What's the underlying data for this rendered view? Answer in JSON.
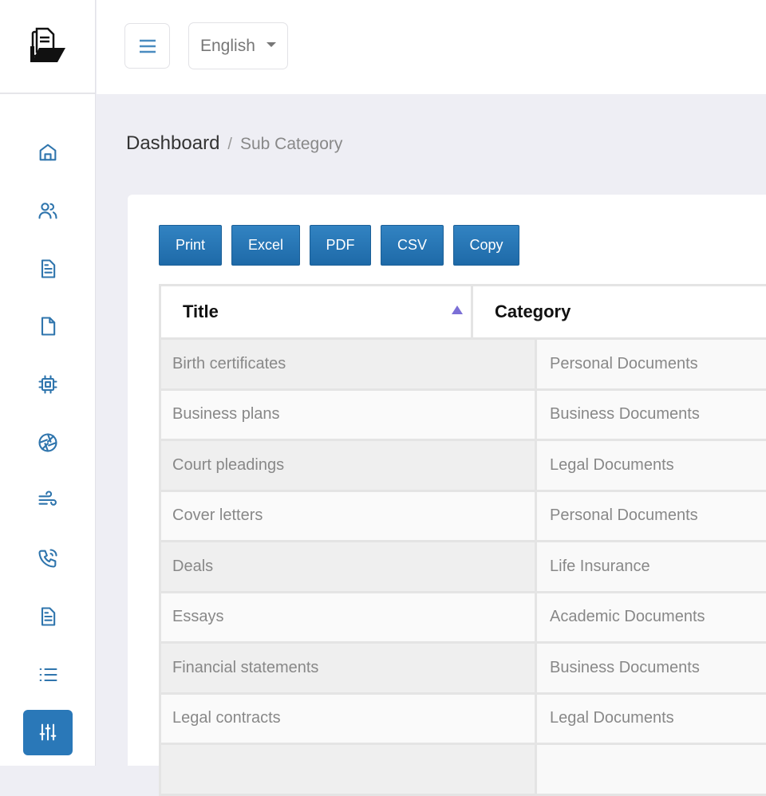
{
  "header": {
    "language": "English"
  },
  "breadcrumb": {
    "root": "Dashboard",
    "separator": "/",
    "current": "Sub Category"
  },
  "toolbar": {
    "buttons": [
      "Print",
      "Excel",
      "PDF",
      "CSV",
      "Copy"
    ]
  },
  "table": {
    "columns": [
      "Title",
      "Category"
    ],
    "sort": {
      "column": "Title",
      "direction": "ascending"
    },
    "rows": [
      [
        "Birth certificates",
        "Personal Documents"
      ],
      [
        "Business plans",
        "Business Documents"
      ],
      [
        "Court pleadings",
        "Legal Documents"
      ],
      [
        "Cover letters",
        "Personal Documents"
      ],
      [
        "Deals",
        "Life Insurance"
      ],
      [
        "Essays",
        "Academic Documents"
      ],
      [
        "Financial statements",
        "Business Documents"
      ],
      [
        "Legal contracts",
        "Legal Documents"
      ]
    ]
  },
  "sidebar": {
    "items": [
      "home-icon",
      "users-icon",
      "file-text-icon",
      "file-icon",
      "cpu-icon",
      "aperture-icon",
      "wind-icon",
      "phone-call-icon",
      "file-text-icon",
      "list-icon",
      "sliders-icon"
    ],
    "active": "sliders-icon"
  },
  "colors": {
    "accent": "#2a78b8",
    "icon": "#2f75ad",
    "sort": "#7b6fd6"
  }
}
